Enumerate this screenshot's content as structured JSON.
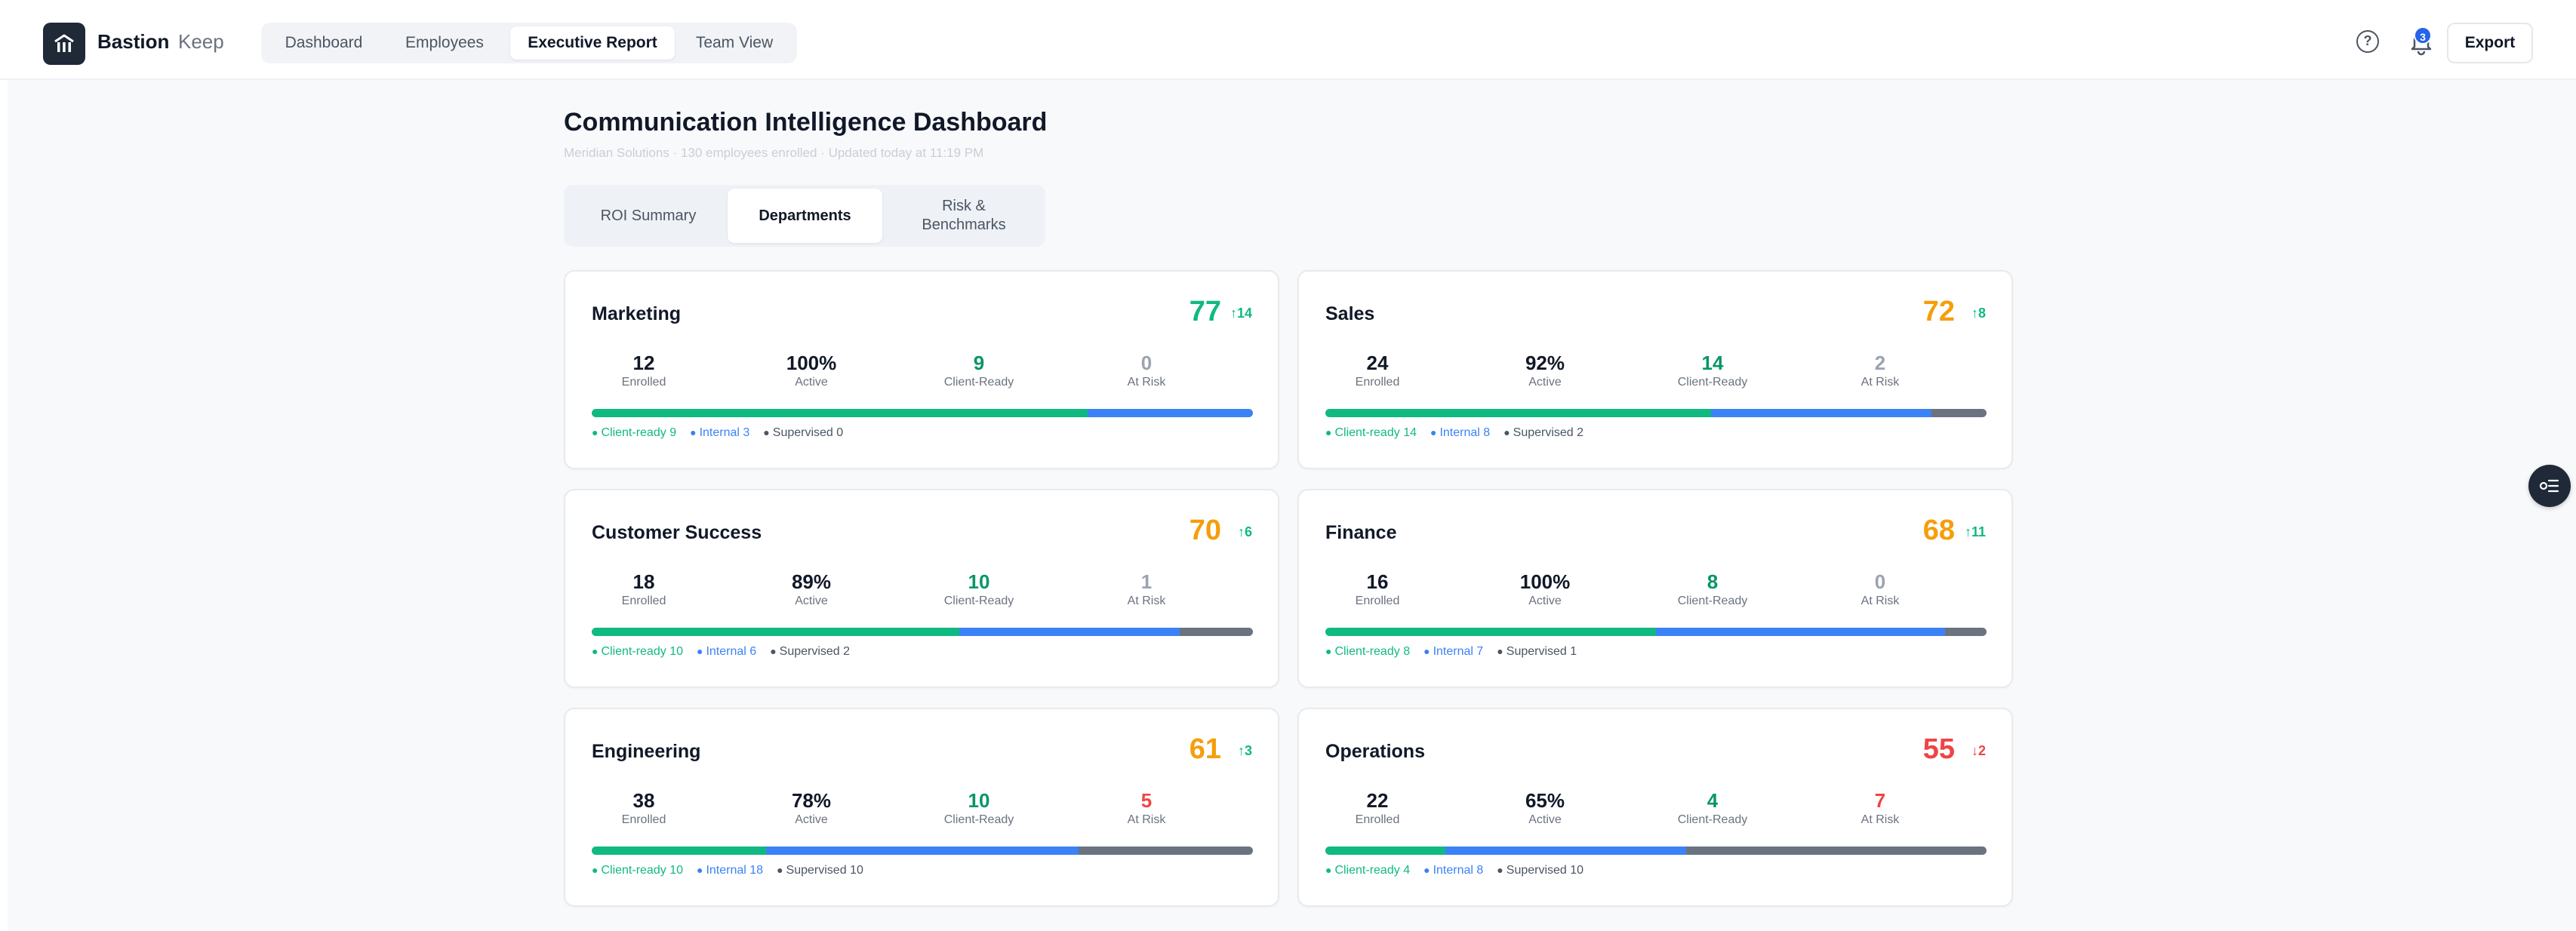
{
  "brand": {
    "name": "Bastion",
    "sub": "Keep"
  },
  "nav": {
    "items": [
      "Dashboard",
      "Employees",
      "Executive Report",
      "Team View"
    ],
    "active": 2
  },
  "header": {
    "notification_count": "3",
    "export_label": "Export"
  },
  "page": {
    "title": "Communication Intelligence Dashboard",
    "subtitle": "Meridian Solutions · 130 employees enrolled · Updated today at 11:19 PM"
  },
  "subtabs": {
    "items": [
      "ROI Summary",
      "Departments",
      "Risk & Benchmarks"
    ],
    "active": 1
  },
  "stat_labels": {
    "enrolled": "Enrolled",
    "active": "Active",
    "client_ready": "Client-Ready",
    "at_risk": "At Risk"
  },
  "legend_labels": {
    "client_ready": "Client-ready",
    "internal": "Internal",
    "supervised": "Supervised"
  },
  "colors": {
    "green": "#10b981",
    "blue": "#3b82f6",
    "gray": "#6b7280",
    "orange": "#f59e0b",
    "red": "#ef4444",
    "score_green": "#10b981",
    "client_ready_text": "#059669"
  },
  "departments": [
    {
      "name": "Marketing",
      "score": "77",
      "trend": "↑14",
      "trend_dir": "up",
      "score_color": "#10b981",
      "enrolled": "12",
      "active": "100%",
      "client_ready": "9",
      "at_risk": "0",
      "at_risk_color": "#9ca3af",
      "split": {
        "client_ready": 9,
        "internal": 3,
        "supervised": 0
      }
    },
    {
      "name": "Sales",
      "score": "72",
      "trend": "↑8",
      "trend_dir": "up",
      "score_color": "#f59e0b",
      "enrolled": "24",
      "active": "92%",
      "client_ready": "14",
      "at_risk": "2",
      "at_risk_color": "#9ca3af",
      "split": {
        "client_ready": 14,
        "internal": 8,
        "supervised": 2
      }
    },
    {
      "name": "Customer Success",
      "score": "70",
      "trend": "↑6",
      "trend_dir": "up",
      "score_color": "#f59e0b",
      "enrolled": "18",
      "active": "89%",
      "client_ready": "10",
      "at_risk": "1",
      "at_risk_color": "#9ca3af",
      "split": {
        "client_ready": 10,
        "internal": 6,
        "supervised": 2
      }
    },
    {
      "name": "Finance",
      "score": "68",
      "trend": "↑11",
      "trend_dir": "up",
      "score_color": "#f59e0b",
      "enrolled": "16",
      "active": "100%",
      "client_ready": "8",
      "at_risk": "0",
      "at_risk_color": "#9ca3af",
      "split": {
        "client_ready": 8,
        "internal": 7,
        "supervised": 1
      }
    },
    {
      "name": "Engineering",
      "score": "61",
      "trend": "↑3",
      "trend_dir": "up",
      "score_color": "#f59e0b",
      "enrolled": "38",
      "active": "78%",
      "client_ready": "10",
      "at_risk": "5",
      "at_risk_color": "#ef4444",
      "split": {
        "client_ready": 10,
        "internal": 18,
        "supervised": 10
      }
    },
    {
      "name": "Operations",
      "score": "55",
      "trend": "↓2",
      "trend_dir": "down",
      "score_color": "#ef4444",
      "enrolled": "22",
      "active": "65%",
      "client_ready": "4",
      "at_risk": "7",
      "at_risk_color": "#ef4444",
      "split": {
        "client_ready": 4,
        "internal": 8,
        "supervised": 10
      }
    }
  ]
}
